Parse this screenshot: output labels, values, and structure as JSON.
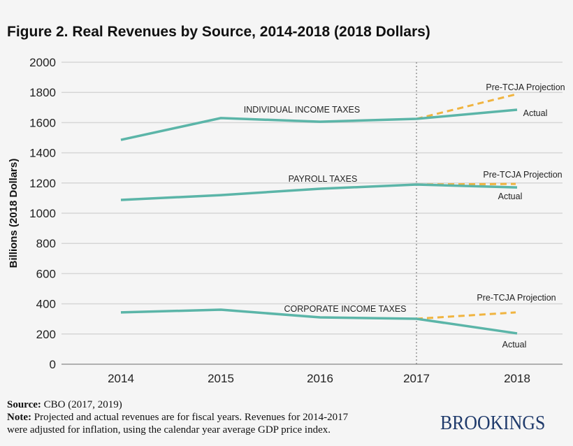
{
  "title": "Figure 2. Real Revenues by Source, 2014-2018 (2018 Dollars)",
  "chart_data": {
    "type": "line",
    "ylabel": "Billions (2018 Dollars)",
    "xlabel": "",
    "ylim": [
      0,
      2000
    ],
    "yticks": [
      0,
      200,
      400,
      600,
      800,
      1000,
      1200,
      1400,
      1600,
      1800,
      2000
    ],
    "categories": [
      "2014",
      "2015",
      "2016",
      "2017",
      "2018"
    ],
    "grid": true,
    "reference_line": "2017",
    "colors": {
      "actual": "#5bb5a8",
      "projection": "#f0b440",
      "reference": "#666666",
      "grid": "#d6d6d6"
    },
    "series": [
      {
        "name": "INDIVIDUAL INCOME TAXES",
        "actual": [
          1486,
          1630,
          1606,
          1625,
          1685
        ],
        "projection": {
          "2017": 1625,
          "2018": 1787
        },
        "projection_label": "Pre-TCJA Projection",
        "actual_label": "Actual"
      },
      {
        "name": "PAYROLL TAXES",
        "actual": [
          1088,
          1120,
          1162,
          1190,
          1171
        ],
        "projection": {
          "2017": 1190,
          "2018": 1194
        },
        "projection_label": "Pre-TCJA Projection",
        "actual_label": "Actual"
      },
      {
        "name": "CORPORATE INCOME TAXES",
        "actual": [
          343,
          361,
          310,
          301,
          204
        ],
        "projection": {
          "2017": 301,
          "2018": 343
        },
        "projection_label": "Pre-TCJA Projection",
        "actual_label": "Actual"
      }
    ]
  },
  "footer": {
    "source_label": "Source:",
    "source_text": " CBO (2017, 2019)",
    "note_label": "Note:",
    "note_text": " Projected and actual revenues are for fiscal years. Revenues for 2014-2017",
    "note_text2": "were adjusted for inflation, using the calendar year average GDP price index."
  },
  "logo": "BROOKINGS"
}
